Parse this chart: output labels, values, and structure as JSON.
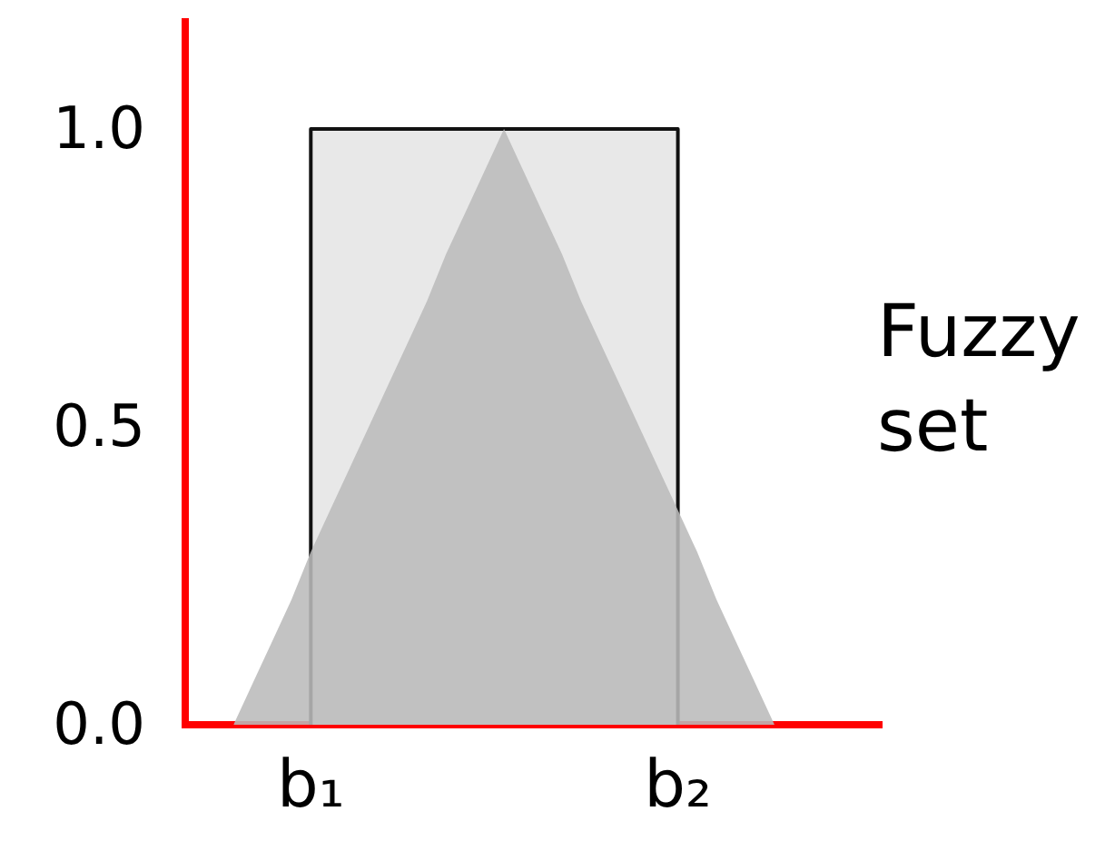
{
  "chart_data": {
    "type": "area",
    "categories": [
      null,
      null,
      null,
      null,
      null,
      null,
      "b₁",
      null,
      null,
      null,
      null,
      null,
      null,
      null,
      null,
      null,
      null,
      null,
      null,
      null,
      null,
      null,
      null,
      null,
      null,
      "b₂",
      null,
      null,
      null,
      null,
      null,
      null,
      null,
      null,
      null,
      null
    ],
    "ylim": [
      0,
      1.18
    ],
    "yticks": [
      {
        "value": 0,
        "label": "0.0"
      },
      0.5,
      {
        "value": 1,
        "label": "1.0"
      }
    ],
    "series": [
      {
        "color": "#e8e8e8",
        "values": [
          null,
          null,
          null,
          null,
          null,
          null,
          1,
          1,
          1,
          1,
          1,
          1,
          1,
          1,
          1,
          1,
          1,
          1,
          1,
          1,
          1,
          1,
          1,
          1,
          1,
          1,
          null,
          null,
          null,
          null,
          null,
          null,
          null,
          null,
          null,
          null
        ]
      },
      {
        "color": "#c3c3c3",
        "values": [
          null,
          null,
          0,
          0.07,
          0.14,
          0.21,
          0.29,
          0.36,
          0.43,
          0.5,
          0.57,
          0.64,
          0.71,
          0.79,
          0.86,
          0.93,
          1,
          0.93,
          0.86,
          0.79,
          0.71,
          0.64,
          0.57,
          0.5,
          0.43,
          0.36,
          0.29,
          0.21,
          0.14,
          0.07,
          0,
          null,
          null,
          null,
          null,
          null
        ]
      }
    ],
    "annotations": [
      "Fuzzy set"
    ],
    "grid": false,
    "legend": false
  }
}
